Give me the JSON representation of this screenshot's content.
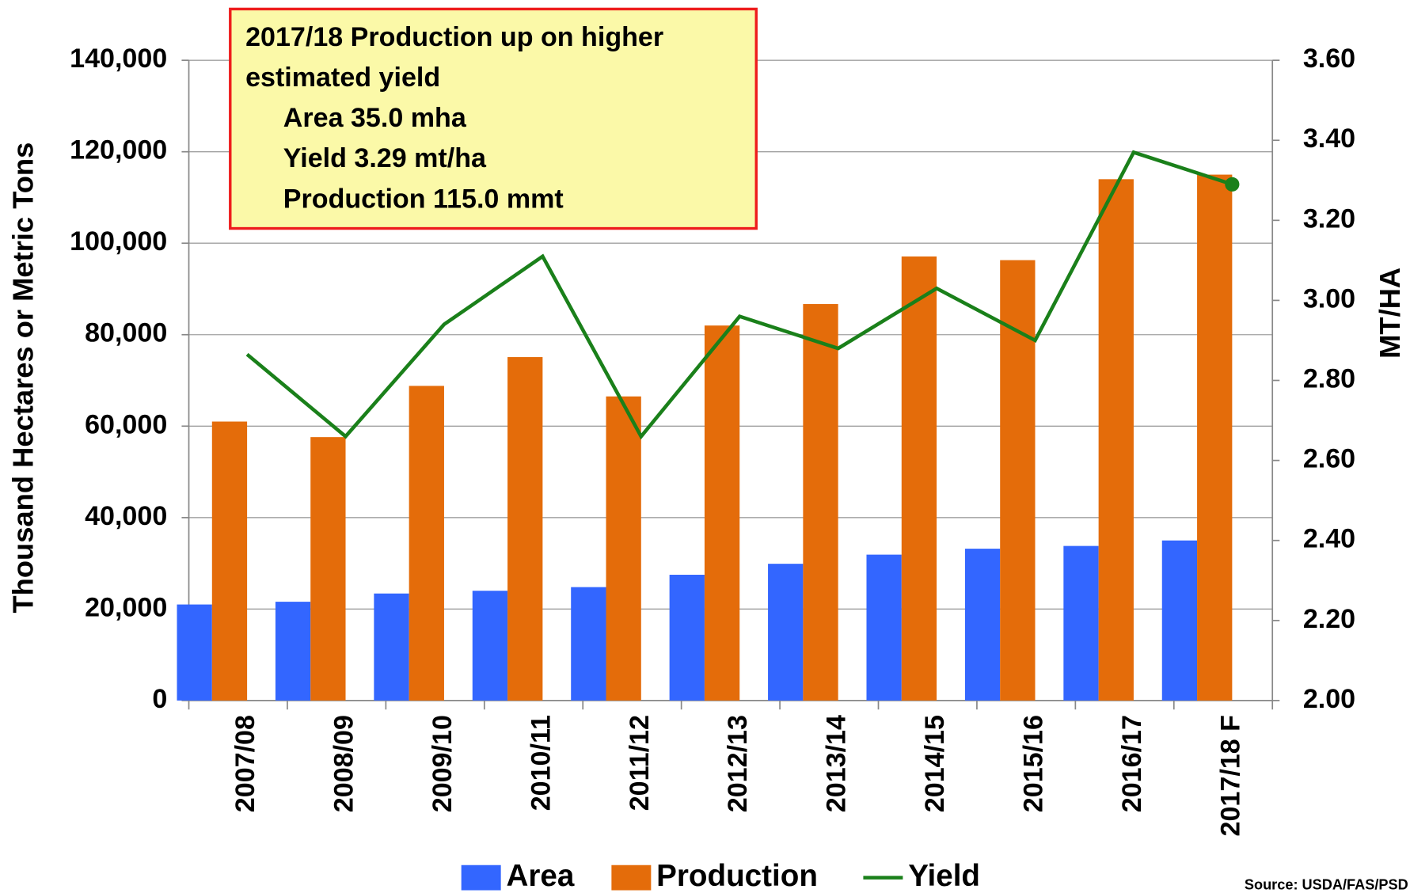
{
  "chart_data": {
    "type": "bar",
    "categories": [
      "2007/08",
      "2008/09",
      "2009/10",
      "2010/11",
      "2011/12",
      "2012/13",
      "2013/14",
      "2014/15",
      "2015/16",
      "2016/17",
      "2017/18 F"
    ],
    "series": [
      {
        "name": "Area",
        "color": "#3366ff",
        "type": "bar",
        "values": [
          21000,
          21600,
          23400,
          24000,
          24800,
          27500,
          29900,
          31900,
          33200,
          33800,
          35000
        ]
      },
      {
        "name": "Production",
        "color": "#e46c0a",
        "type": "bar",
        "values": [
          61000,
          57600,
          68800,
          75100,
          66500,
          82000,
          86700,
          97100,
          96300,
          114000,
          115000
        ]
      },
      {
        "name": "Yield",
        "color": "#1a801a",
        "type": "line",
        "axis": "y2",
        "values": [
          2.865,
          2.66,
          2.94,
          3.11,
          2.66,
          2.96,
          2.88,
          3.03,
          2.9,
          3.37,
          3.29
        ]
      }
    ],
    "ylabel": "Thousand Hectares or Metric Tons",
    "y2label": "MT/HA",
    "ylim": [
      0,
      140000
    ],
    "yticks": [
      0,
      {
        "value": 20000,
        "label": "20,000"
      },
      {
        "value": 40000,
        "label": "40,000"
      },
      {
        "value": 60000,
        "label": "60,000"
      },
      {
        "value": 80000,
        "label": "80,000"
      },
      {
        "value": 100000,
        "label": "100,000"
      },
      {
        "value": 120000,
        "label": "120,000"
      },
      {
        "value": 140000,
        "label": "140,000"
      }
    ],
    "y2lim": [
      2.0,
      3.6
    ],
    "y2ticks": [
      {
        "value": 2.0,
        "label": "2.00"
      },
      {
        "value": 2.2,
        "label": "2.20"
      },
      {
        "value": 2.4,
        "label": "2.40"
      },
      {
        "value": 2.6,
        "label": "2.60"
      },
      {
        "value": 2.8,
        "label": "2.80"
      },
      {
        "value": 3.0,
        "label": "3.00"
      },
      {
        "value": 3.2,
        "label": "3.20"
      },
      {
        "value": 3.4,
        "label": "3.40"
      },
      {
        "value": 3.6,
        "label": "3.60"
      }
    ],
    "grid": true,
    "legend": "bottom",
    "annotation": [
      "2017/18 Production up on higher",
      "estimated yield",
      "Area 35.0 mha",
      "Yield 3.29 mt/ha",
      "Production 115.0 mmt"
    ],
    "source": "Source: USDA/FAS/PSD"
  }
}
